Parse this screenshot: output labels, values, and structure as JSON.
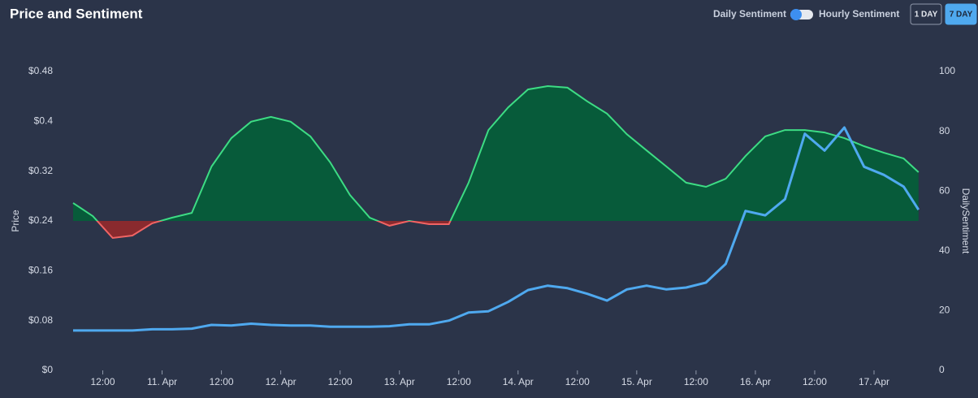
{
  "header": {
    "title": "Price and Sentiment",
    "controls": {
      "left_label": "Daily Sentiment",
      "right_label": "Hourly Sentiment",
      "buttons": [
        {
          "label": "1 DAY",
          "active": false
        },
        {
          "label": "7 DAY",
          "active": true
        }
      ]
    }
  },
  "chart_data": {
    "type": "line",
    "ylabel": "Price",
    "y2label": "DailySentiment",
    "x": [
      6,
      10,
      14,
      18,
      22,
      26,
      30,
      34,
      38,
      42,
      46,
      50,
      54,
      58,
      62,
      66,
      70,
      74,
      78,
      82,
      86,
      90,
      94,
      98,
      102,
      106,
      110,
      114,
      118,
      122,
      126,
      130,
      134,
      138,
      142,
      146,
      150,
      154,
      158,
      162,
      166,
      170,
      174,
      177
    ],
    "xlim": [
      6,
      177.2
    ],
    "xticks": [
      {
        "value": 12,
        "label": "12:00"
      },
      {
        "value": 24,
        "label": "11. Apr"
      },
      {
        "value": 36,
        "label": "12:00"
      },
      {
        "value": 48,
        "label": "12. Apr"
      },
      {
        "value": 60,
        "label": "12:00"
      },
      {
        "value": 72,
        "label": "13. Apr"
      },
      {
        "value": 84,
        "label": "12:00"
      },
      {
        "value": 96,
        "label": "14. Apr"
      },
      {
        "value": 108,
        "label": "12:00"
      },
      {
        "value": 120,
        "label": "15. Apr"
      },
      {
        "value": 132,
        "label": "12:00"
      },
      {
        "value": 144,
        "label": "16. Apr"
      },
      {
        "value": 156,
        "label": "12:00"
      },
      {
        "value": 168,
        "label": "17. Apr"
      }
    ],
    "ylim": [
      0,
      0.48
    ],
    "yticks": [
      {
        "value": 0,
        "label": "$0"
      },
      {
        "value": 0.08,
        "label": "$0.08"
      },
      {
        "value": 0.16,
        "label": "$0.16"
      },
      {
        "value": 0.24,
        "label": "$0.24"
      },
      {
        "value": 0.32,
        "label": "$0.32"
      },
      {
        "value": 0.4,
        "label": "$0.4"
      },
      {
        "value": 0.48,
        "label": "$0.48"
      }
    ],
    "y2lim": [
      0,
      100
    ],
    "y2ticks": [
      0,
      20,
      40,
      60,
      80,
      100
    ],
    "y2_baseline": 50,
    "series": [
      {
        "name": "Price",
        "color": "#4fa9ef",
        "values": [
          0.064,
          0.064,
          0.064,
          0.064,
          0.066,
          0.066,
          0.067,
          0.073,
          0.072,
          0.075,
          0.073,
          0.072,
          0.072,
          0.07,
          0.07,
          0.07,
          0.071,
          0.074,
          0.074,
          0.08,
          0.093,
          0.095,
          0.11,
          0.129,
          0.136,
          0.132,
          0.123,
          0.112,
          0.13,
          0.136,
          0.13,
          0.133,
          0.141,
          0.171,
          0.256,
          0.249,
          0.275,
          0.38,
          0.353,
          0.39,
          0.327,
          0.314,
          0.295,
          0.258
        ]
      },
      {
        "name": "DailySentiment",
        "color": "#3ddc84",
        "negative_color": "#f06464",
        "fill": "#075b3a",
        "negative_fill": "#8a2a2e",
        "axis": "y2",
        "values": [
          56,
          51.6,
          44.3,
          45.1,
          49.2,
          51.1,
          52.7,
          68.2,
          77.7,
          83.2,
          84.8,
          83.2,
          78.3,
          69.6,
          58.7,
          51.1,
          48.4,
          50,
          48.9,
          48.9,
          62.8,
          80.4,
          88,
          94,
          95.1,
          94.6,
          90,
          85.9,
          79,
          73.6,
          68.2,
          62.8,
          61.4,
          64.1,
          71.7,
          78.3,
          80.4,
          80.4,
          79.6,
          77.7,
          75,
          72.8,
          70.9,
          66.3
        ]
      }
    ]
  }
}
